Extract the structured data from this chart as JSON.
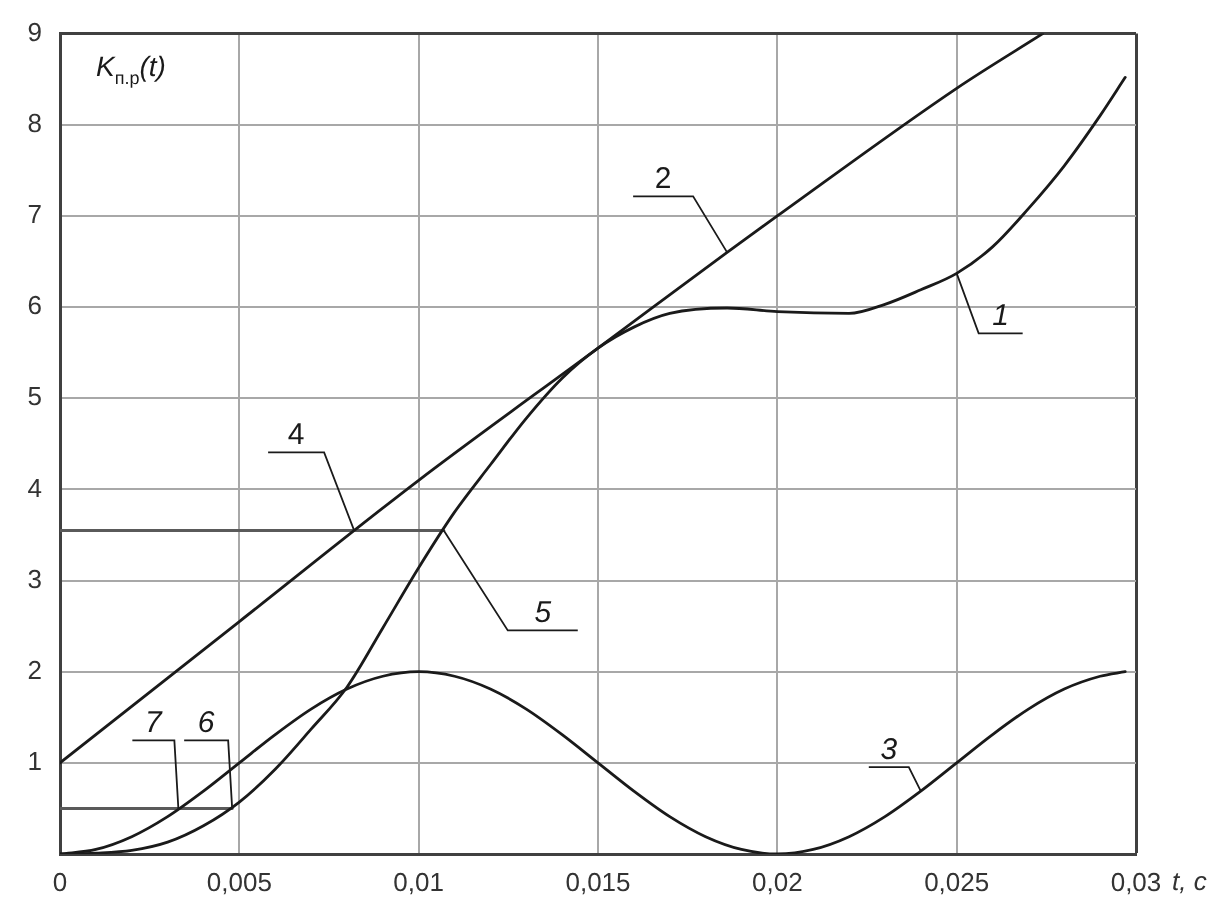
{
  "chart_data": {
    "type": "line",
    "xlabel": "t, c",
    "ylabel": "K$_{п.р}$(t)",
    "xlim": [
      0,
      0.03
    ],
    "ylim": [
      0,
      9
    ],
    "xticks": [
      0,
      {
        "value": 0.005,
        "label": "0,005"
      },
      {
        "value": 0.01,
        "label": "0,01"
      },
      {
        "value": 0.015,
        "label": "0,015"
      },
      {
        "value": 0.02,
        "label": "0,02"
      },
      {
        "value": 0.025,
        "label": "0,025"
      },
      {
        "value": 0.03,
        "label": "0,03"
      }
    ],
    "yticks": [
      {
        "value": 0,
        "label": null
      },
      1,
      2,
      3,
      4,
      5,
      6,
      7,
      8,
      9
    ],
    "grid": true,
    "series": [
      {
        "name": "1",
        "color": "#1a1a1a",
        "x": [
          0,
          0.001,
          0.002,
          0.003,
          0.004,
          0.005,
          0.006,
          0.007,
          0.008,
          0.009,
          0.01,
          0.011,
          0.012,
          0.013,
          0.014,
          0.015,
          0.016,
          0.017,
          0.0186,
          0.02,
          0.022,
          0.023,
          0.024,
          0.025,
          0.026,
          0.027,
          0.028,
          0.029,
          0.0297
        ],
        "values": [
          0,
          0.01,
          0.04,
          0.13,
          0.31,
          0.57,
          0.93,
          1.37,
          1.83,
          2.48,
          3.14,
          3.75,
          4.27,
          4.78,
          5.22,
          5.55,
          5.78,
          5.93,
          5.99,
          5.95,
          5.93,
          6.03,
          6.19,
          6.37,
          6.66,
          7.08,
          7.55,
          8.1,
          8.52
        ]
      },
      {
        "name": "2",
        "color": "#1a1a1a",
        "x": [
          0,
          0.005,
          0.01,
          0.015,
          0.0186,
          0.02,
          0.025,
          0.0274
        ],
        "values": [
          1,
          2.55,
          4.1,
          5.55,
          6.6,
          7.0,
          8.4,
          9.0
        ]
      },
      {
        "name": "3",
        "color": "#1a1a1a",
        "x": [
          0,
          0.001,
          0.002,
          0.003,
          0.004,
          0.005,
          0.006,
          0.007,
          0.008,
          0.009,
          0.01,
          0.011,
          0.012,
          0.013,
          0.014,
          0.015,
          0.016,
          0.017,
          0.018,
          0.019,
          0.02,
          0.021,
          0.022,
          0.023,
          0.024,
          0.025,
          0.026,
          0.027,
          0.028,
          0.029,
          0.0297
        ],
        "values": [
          0,
          0.05,
          0.19,
          0.41,
          0.69,
          1,
          1.31,
          1.59,
          1.81,
          1.95,
          2,
          1.95,
          1.81,
          1.59,
          1.31,
          1,
          0.69,
          0.41,
          0.19,
          0.05,
          0,
          0.05,
          0.19,
          0.41,
          0.69,
          1,
          1.31,
          1.59,
          1.81,
          1.95,
          2
        ]
      },
      {
        "color": "#5a5a5a",
        "x": [
          0,
          0.0107
        ],
        "values": [
          3.55,
          3.55
        ]
      },
      {
        "color": "#5a5a5a",
        "x": [
          0,
          0.0048
        ],
        "values": [
          0.5,
          0.5
        ]
      }
    ],
    "annotations": [
      {
        "text": "4",
        "x": 0.0082,
        "y": 3.55
      },
      {
        "text": "5",
        "x": 0.0107,
        "y": 3.55
      },
      {
        "text": "6",
        "x": 0.0048,
        "y": 0.5
      },
      {
        "text": "7",
        "x": 0.0033,
        "y": 0.5
      }
    ]
  }
}
